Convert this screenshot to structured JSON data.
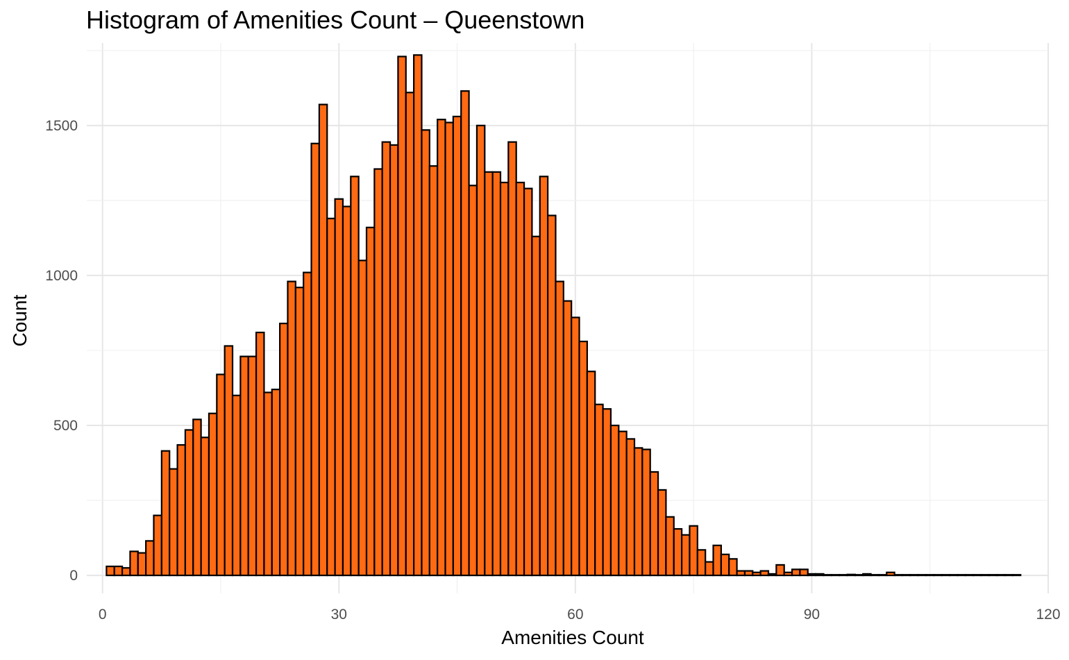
{
  "chart_data": {
    "type": "bar",
    "title": "Histogram of Amenities Count – Queenstown",
    "xlabel": "Amenities Count",
    "ylabel": "Count",
    "xlim": [
      -2,
      120
    ],
    "ylim": [
      -60,
      1775
    ],
    "x_ticks": [
      0,
      30,
      60,
      90,
      120
    ],
    "y_ticks": [
      0,
      500,
      1000,
      1500
    ],
    "grid": true,
    "bin_width": 1,
    "bar_fill": "#ff6a13",
    "bar_stroke": "#000000",
    "bins_start": 0.5,
    "values": [
      30,
      30,
      25,
      80,
      75,
      115,
      200,
      415,
      355,
      435,
      485,
      520,
      460,
      540,
      670,
      765,
      600,
      730,
      730,
      810,
      610,
      620,
      840,
      980,
      960,
      1010,
      1440,
      1570,
      1190,
      1255,
      1230,
      1330,
      1050,
      1160,
      1355,
      1445,
      1435,
      1730,
      1610,
      1735,
      1485,
      1365,
      1520,
      1510,
      1530,
      1615,
      1300,
      1500,
      1345,
      1345,
      1310,
      1445,
      1310,
      1290,
      1130,
      1330,
      1200,
      980,
      915,
      860,
      780,
      680,
      570,
      555,
      500,
      480,
      455,
      425,
      420,
      345,
      285,
      195,
      155,
      135,
      165,
      85,
      45,
      100,
      70,
      55,
      15,
      15,
      10,
      15,
      5,
      35,
      10,
      20,
      20,
      5,
      5,
      2,
      2,
      2,
      3,
      2,
      5,
      2,
      2,
      10,
      2,
      2,
      2,
      2,
      2,
      2,
      2,
      2,
      2,
      2,
      2,
      2,
      2,
      2,
      2,
      2
    ]
  }
}
